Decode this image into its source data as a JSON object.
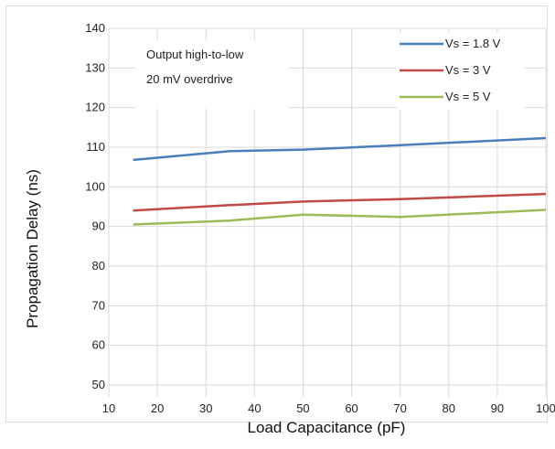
{
  "chart_data": {
    "type": "line",
    "title": "",
    "xlabel": "Load Capacitance (pF)",
    "ylabel": "Propagation Delay (ns)",
    "xlim": [
      10,
      100
    ],
    "ylim": [
      47,
      140
    ],
    "xticks": [
      10,
      20,
      30,
      40,
      50,
      60,
      70,
      80,
      90,
      100
    ],
    "yticks": [
      50,
      60,
      70,
      80,
      90,
      100,
      110,
      120,
      130,
      140
    ],
    "grid": true,
    "annotations": [
      "Output high-to-low",
      "20 mV overdrive"
    ],
    "legend_position": "top-right",
    "series": [
      {
        "name": "Vs = 1.8 V",
        "color": "#4a7ebb",
        "points": [
          [
            15,
            106.8
          ],
          [
            35,
            109.0
          ],
          [
            50,
            109.4
          ],
          [
            70,
            110.5
          ],
          [
            100,
            112.3
          ]
        ]
      },
      {
        "name": "Vs = 3 V",
        "color": "#be4b48",
        "points": [
          [
            15,
            94.0
          ],
          [
            35,
            95.4
          ],
          [
            50,
            96.3
          ],
          [
            70,
            96.9
          ],
          [
            100,
            98.2
          ]
        ]
      },
      {
        "name": "Vs = 5 V",
        "color": "#9bbb59",
        "points": [
          [
            15,
            90.5
          ],
          [
            35,
            91.5
          ],
          [
            50,
            93.0
          ],
          [
            70,
            92.4
          ],
          [
            100,
            94.2
          ]
        ]
      }
    ]
  }
}
